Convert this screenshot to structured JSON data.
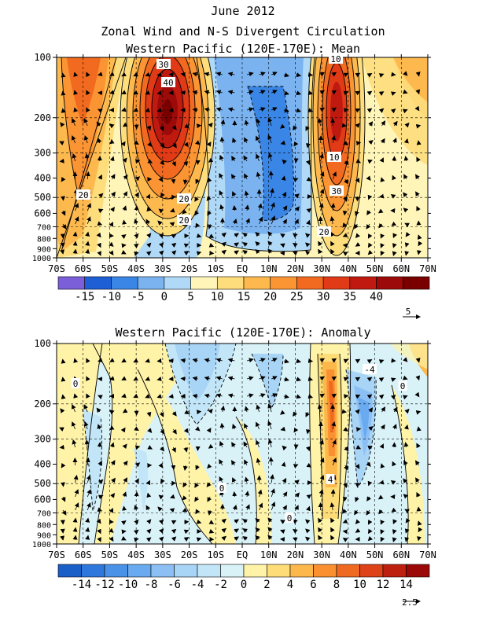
{
  "header": {
    "title_line1": "June 2012",
    "title_line2": "Zonal Wind and N-S Divergent Circulation",
    "title_line3": "Western Pacific (120E-170E): Mean"
  },
  "chart_data": [
    {
      "type": "heatmap",
      "title": "Western Pacific (120E-170E): Mean",
      "x_ticks": [
        "70S",
        "60S",
        "50S",
        "40S",
        "30S",
        "20S",
        "10S",
        "EQ",
        "10N",
        "20N",
        "30N",
        "40N",
        "50N",
        "60N",
        "70N"
      ],
      "y_ticks": [
        "100",
        "200",
        "300",
        "400",
        "500",
        "600",
        "700",
        "800",
        "900",
        "1000"
      ],
      "y_scale": "log-pressure",
      "colorbar": {
        "labels": [
          "-15",
          "-10",
          "-5",
          "0",
          "5",
          "10",
          "15",
          "20",
          "25",
          "30",
          "35",
          "40"
        ],
        "colors": [
          "#7a5fd9",
          "#1f5fd6",
          "#3a86e6",
          "#7ab3f0",
          "#b0d9f7",
          "#fff5b8",
          "#fedd7c",
          "#fdb94e",
          "#fb9433",
          "#f26a1f",
          "#e03b16",
          "#c01a10",
          "#9c0a0a",
          "#7a0000"
        ]
      },
      "vector_reference": "5",
      "contour_labels": [
        "30",
        "40",
        "20",
        "20",
        "20",
        "10",
        "30",
        "20",
        "10"
      ],
      "features": [
        {
          "name": "SH subtropical jet",
          "lat": -27,
          "pressure": 200,
          "max_u": 42
        },
        {
          "name": "SH midlatitude westerlies",
          "lat": -60,
          "pressure": 150,
          "max_u": 27
        },
        {
          "name": "NH subtropical jet",
          "lat": 38,
          "pressure": 200,
          "max_u": 37
        },
        {
          "name": "Tropical easterlies",
          "lat": 2,
          "pressure": 200,
          "min_u": -9
        }
      ]
    },
    {
      "type": "heatmap",
      "title": "Western Pacific (120E-170E): Anomaly",
      "x_ticks": [
        "70S",
        "60S",
        "50S",
        "40S",
        "30S",
        "20S",
        "10S",
        "EQ",
        "10N",
        "20N",
        "30N",
        "40N",
        "50N",
        "60N",
        "70N"
      ],
      "y_ticks": [
        "100",
        "200",
        "300",
        "400",
        "500",
        "600",
        "700",
        "800",
        "900",
        "1000"
      ],
      "y_scale": "log-pressure",
      "colorbar": {
        "labels": [
          "-14",
          "-12",
          "-10",
          "-8",
          "-6",
          "-4",
          "-2",
          "0",
          "2",
          "4",
          "6",
          "8",
          "10",
          "12",
          "14"
        ],
        "colors": [
          "#1a5fc8",
          "#2e78dc",
          "#4a92e8",
          "#6aaaf0",
          "#8cc0f4",
          "#a8d4f6",
          "#c2e6f8",
          "#d8f2f8",
          "#fff3a8",
          "#fedc78",
          "#fdb84c",
          "#fa9030",
          "#ef6a20",
          "#dd4218",
          "#be2010",
          "#9a0808"
        ]
      },
      "vector_reference": "2.5",
      "contour_labels": [
        "-4",
        "0",
        "0",
        "0",
        "4",
        "0"
      ],
      "features": [
        {
          "name": "NH positive anomaly",
          "lat": 35,
          "pressure": 250,
          "value": 8
        },
        {
          "name": "NH negative anomaly",
          "lat": 45,
          "pressure": 250,
          "value": -6
        },
        {
          "name": "SH subtropical negative",
          "lat": -22,
          "pressure": 200,
          "value": -4
        },
        {
          "name": "SH midlatitude positive",
          "lat": -28,
          "pressure": 350,
          "value": 3
        }
      ]
    }
  ]
}
